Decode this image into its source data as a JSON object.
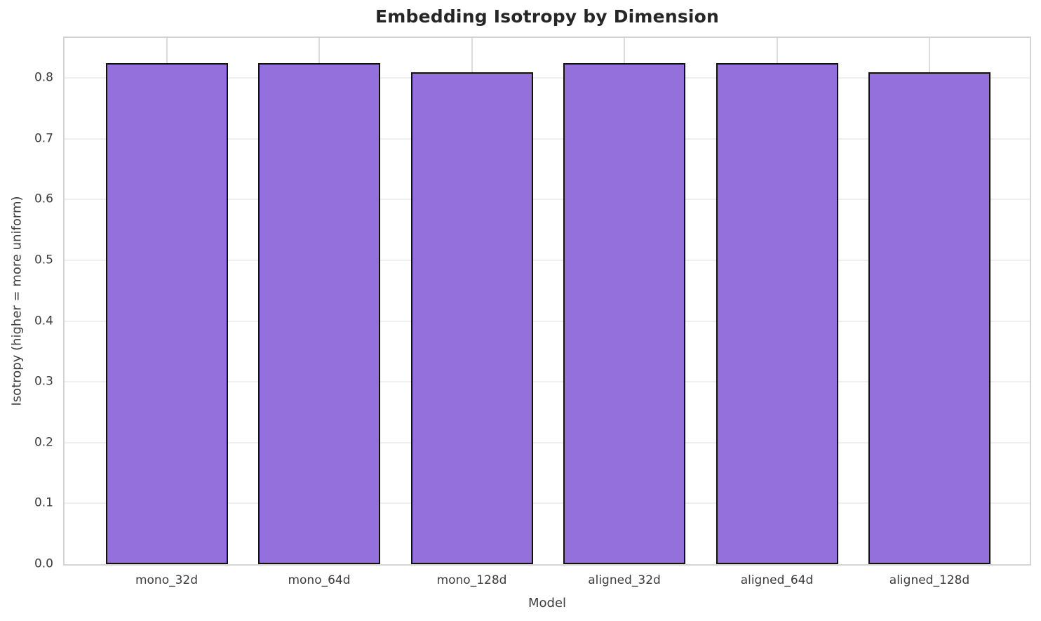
{
  "chart_data": {
    "type": "bar",
    "title": "Embedding Isotropy by Dimension",
    "xlabel": "Model",
    "ylabel": "Isotropy (higher = more uniform)",
    "categories": [
      "mono_32d",
      "mono_64d",
      "mono_128d",
      "aligned_32d",
      "aligned_64d",
      "aligned_128d"
    ],
    "values": [
      0.825,
      0.825,
      0.81,
      0.825,
      0.825,
      0.81
    ],
    "ylim": [
      0.0,
      0.866
    ],
    "yticks": [
      "0.0",
      "0.1",
      "0.2",
      "0.3",
      "0.4",
      "0.5",
      "0.6",
      "0.7",
      "0.8"
    ],
    "grid": "both",
    "legend": "none",
    "colors": {
      "bar_fill": "#9370DB",
      "bar_edge": "#111111",
      "grid_horizontal": "#efefef",
      "grid_vertical": "#dcdcdc",
      "spine": "#d4d4d4",
      "title_text": "#262626",
      "tick_text": "#3d3d3d"
    }
  }
}
